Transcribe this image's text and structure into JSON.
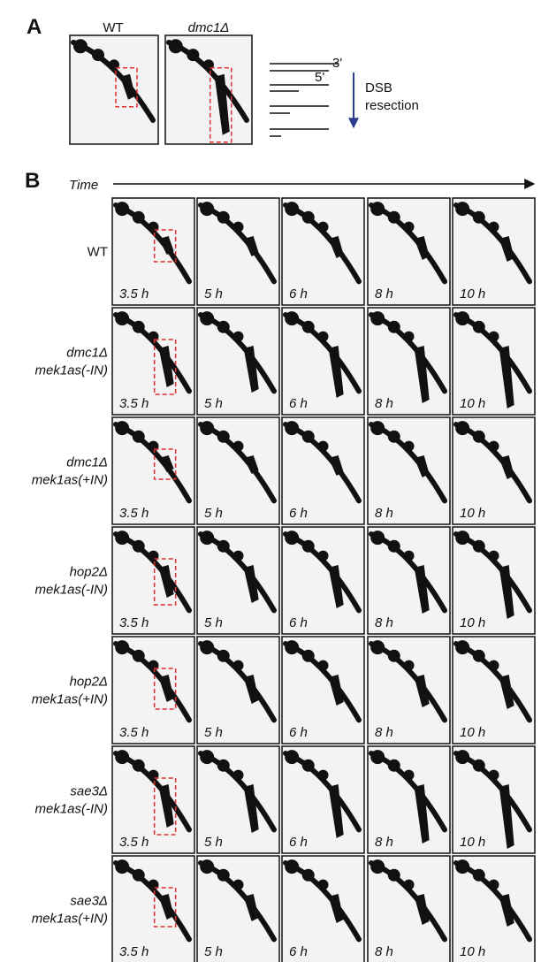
{
  "panel_a": {
    "label": "A",
    "blots": [
      "WT",
      "dmc1Δ"
    ],
    "diagram": {
      "end_3": "3'",
      "end_5": "5'",
      "arrow_label": [
        "DSB",
        "resection"
      ]
    }
  },
  "panel_b": {
    "label": "B",
    "axis_label": "Time",
    "rows": [
      {
        "genotype": [
          "WT"
        ],
        "times": [
          "3.5 h",
          "5 h",
          "6 h",
          "8 h",
          "10 h"
        ]
      },
      {
        "genotype": [
          "dmc1Δ",
          "mek1as(-IN)"
        ],
        "times": [
          "3.5 h",
          "5 h",
          "6 h",
          "8 h",
          "10 h"
        ]
      },
      {
        "genotype": [
          "dmc1Δ",
          "mek1as(+IN)"
        ],
        "times": [
          "3.5 h",
          "5 h",
          "6 h",
          "8 h",
          "10 h"
        ]
      },
      {
        "genotype": [
          "hop2Δ",
          "mek1as(-IN)"
        ],
        "times": [
          "3.5 h",
          "5 h",
          "6 h",
          "8 h",
          "10 h"
        ]
      },
      {
        "genotype": [
          "hop2Δ",
          "mek1as(+IN)"
        ],
        "times": [
          "3.5 h",
          "5 h",
          "6 h",
          "8 h",
          "10 h"
        ]
      },
      {
        "genotype": [
          "sae3Δ",
          "mek1as(-IN)"
        ],
        "times": [
          "3.5 h",
          "5 h",
          "6 h",
          "8 h",
          "10 h"
        ]
      },
      {
        "genotype": [
          "sae3Δ",
          "mek1as(+IN)"
        ],
        "times": [
          "3.5 h",
          "5 h",
          "6 h",
          "8 h",
          "10 h"
        ]
      }
    ]
  }
}
